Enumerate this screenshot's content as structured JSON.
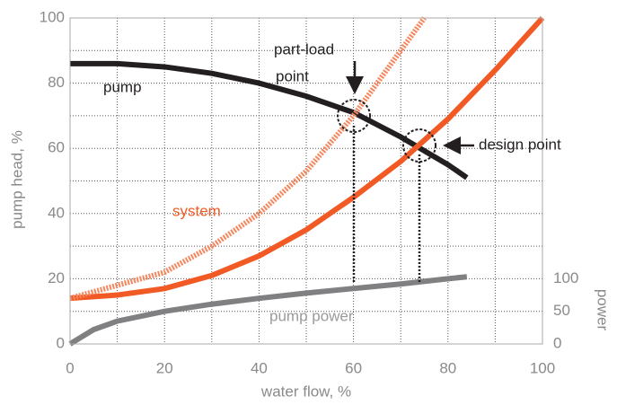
{
  "chart_data": {
    "type": "line",
    "xlabel": "water flow, %",
    "ylabel": "pump head, %",
    "y2label": "power",
    "xlim": [
      0,
      100
    ],
    "xticks": [
      0,
      20,
      40,
      60,
      80,
      100
    ],
    "xminor": [
      10,
      30,
      50,
      70,
      90
    ],
    "ylim": [
      0,
      100
    ],
    "yticks": [
      0,
      20,
      40,
      60,
      80,
      100
    ],
    "yminor": [
      10,
      30,
      50,
      70,
      90
    ],
    "y2lim": [
      0,
      500
    ],
    "y2ticks": [
      0,
      50,
      100
    ],
    "grid": true,
    "series": [
      {
        "name": "pump",
        "color": "#231f20",
        "x": [
          0,
          10,
          20,
          30,
          40,
          50,
          60,
          70,
          80,
          84
        ],
        "values": [
          86,
          86,
          85,
          83,
          80,
          76,
          71,
          63.5,
          55,
          51
        ]
      },
      {
        "name": "system",
        "color": "#f15a24",
        "x": [
          0,
          10,
          20,
          30,
          40,
          50,
          60,
          70,
          80,
          90,
          100
        ],
        "values": [
          14,
          15,
          17,
          21,
          27,
          35,
          45,
          56,
          69,
          84,
          100
        ]
      },
      {
        "color": "#f4875f",
        "style": "hatched",
        "x": [
          0,
          10,
          20,
          30,
          40,
          50,
          60,
          70,
          75
        ],
        "values": [
          14,
          18,
          22,
          30,
          40,
          53,
          70,
          90,
          100
        ]
      },
      {
        "name": "pump power",
        "color": "#808083",
        "axis": "y2",
        "x": [
          0,
          5,
          10,
          20,
          30,
          40,
          50,
          60,
          70,
          80,
          84
        ],
        "values": [
          0,
          22,
          35,
          50,
          61,
          70,
          78,
          85,
          92,
          100,
          103
        ]
      }
    ],
    "annotations": [
      "part-load",
      "point",
      "design point"
    ]
  }
}
